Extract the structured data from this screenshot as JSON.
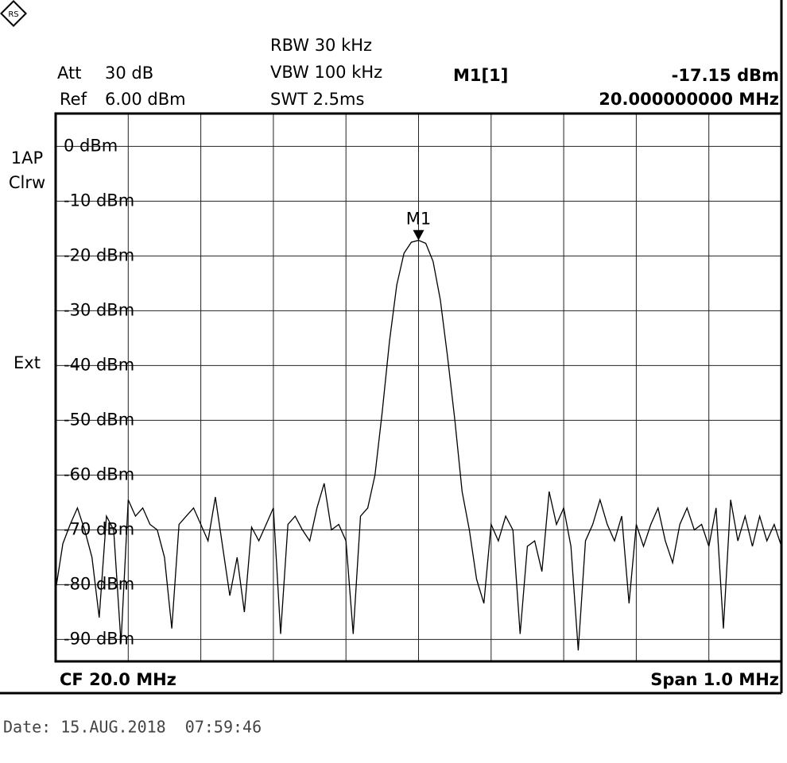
{
  "ui": {
    "att_label": "Att",
    "att_value": "30 dB",
    "ref_label": "Ref",
    "ref_value": "6.00 dBm",
    "rbw": "RBW 30 kHz",
    "vbw": "VBW 100 kHz",
    "swt": "SWT 2.5ms",
    "marker_name": "M1[1]",
    "marker_level": "-17.15 dBm",
    "marker_freq": "20.000000000 MHz",
    "trace_mode": "1AP",
    "trace_detector": "Clrw",
    "trigger": "Ext",
    "center": "CF 20.0 MHz",
    "span": "Span 1.0 MHz",
    "date": "Date: 15.AUG.2018  07:59:46"
  },
  "chart_data": {
    "type": "line",
    "color": "#000000",
    "grid": true,
    "xlim": [
      19.5,
      20.5
    ],
    "ylim": [
      -94,
      6
    ],
    "yticks": [
      {
        "value": 0,
        "label": "0 dBm"
      },
      {
        "value": -10,
        "label": "-10 dBm"
      },
      {
        "value": -20,
        "label": "-20 dBm"
      },
      {
        "value": -30,
        "label": "-30 dBm"
      },
      {
        "value": -40,
        "label": "-40 dBm"
      },
      {
        "value": -50,
        "label": "-50 dBm"
      },
      {
        "value": -60,
        "label": "-60 dBm"
      },
      {
        "value": -70,
        "label": "-70 dBm"
      },
      {
        "value": -80,
        "label": "-80 dBm"
      },
      {
        "value": -90,
        "label": "-90 dBm"
      }
    ],
    "marker": {
      "label": "M1",
      "x": 20.0,
      "value": -17.15
    },
    "x": [
      19.5,
      19.51,
      19.52,
      19.53,
      19.54,
      19.55,
      19.56,
      19.57,
      19.58,
      19.59,
      19.6,
      19.61,
      19.62,
      19.63,
      19.64,
      19.65,
      19.66,
      19.67,
      19.68,
      19.69,
      19.7,
      19.71,
      19.72,
      19.73,
      19.74,
      19.75,
      19.76,
      19.77,
      19.78,
      19.79,
      19.8,
      19.81,
      19.82,
      19.83,
      19.84,
      19.85,
      19.86,
      19.87,
      19.88,
      19.89,
      19.9,
      19.91,
      19.92,
      19.93,
      19.94,
      19.95,
      19.96,
      19.97,
      19.98,
      19.99,
      20.0,
      20.01,
      20.02,
      20.03,
      20.04,
      20.05,
      20.06,
      20.07,
      20.08,
      20.09,
      20.1,
      20.11,
      20.12,
      20.13,
      20.14,
      20.15,
      20.16,
      20.17,
      20.18,
      20.19,
      20.2,
      20.21,
      20.22,
      20.23,
      20.24,
      20.25,
      20.26,
      20.27,
      20.28,
      20.29,
      20.3,
      20.31,
      20.32,
      20.33,
      20.34,
      20.35,
      20.36,
      20.37,
      20.38,
      20.39,
      20.4,
      20.41,
      20.42,
      20.43,
      20.44,
      20.45,
      20.46,
      20.47,
      20.48,
      20.49,
      20.5
    ],
    "values": [
      -81,
      -72.5,
      -69,
      -66,
      -70,
      -75,
      -86,
      -67.5,
      -70,
      -90.7,
      -64.5,
      -67.5,
      -66,
      -69,
      -70,
      -75,
      -88,
      -69,
      -67.5,
      -66,
      -69,
      -72,
      -64,
      -73,
      -82,
      -75,
      -85,
      -69.5,
      -72,
      -69,
      -66,
      -89,
      -69,
      -67.5,
      -70,
      -72,
      -66,
      -61.5,
      -70,
      -69,
      -72,
      -89,
      -67.5,
      -66,
      -60,
      -48.5,
      -35.5,
      -25.3,
      -19.5,
      -17.5,
      -17.15,
      -17.7,
      -21,
      -28,
      -38.4,
      -50,
      -63,
      -70,
      -79,
      -83.4,
      -69,
      -72,
      -67.5,
      -70,
      -89,
      -73,
      -72,
      -77.6,
      -63,
      -69,
      -66,
      -73,
      -92,
      -72,
      -69,
      -64.5,
      -69,
      -72,
      -67.5,
      -83.4,
      -69,
      -73,
      -69,
      -66,
      -72,
      -76,
      -69,
      -66,
      -70,
      -69,
      -73,
      -66,
      -88,
      -64.5,
      -72,
      -67.5,
      -73,
      -67.5,
      -72,
      -69,
      -73
    ]
  }
}
